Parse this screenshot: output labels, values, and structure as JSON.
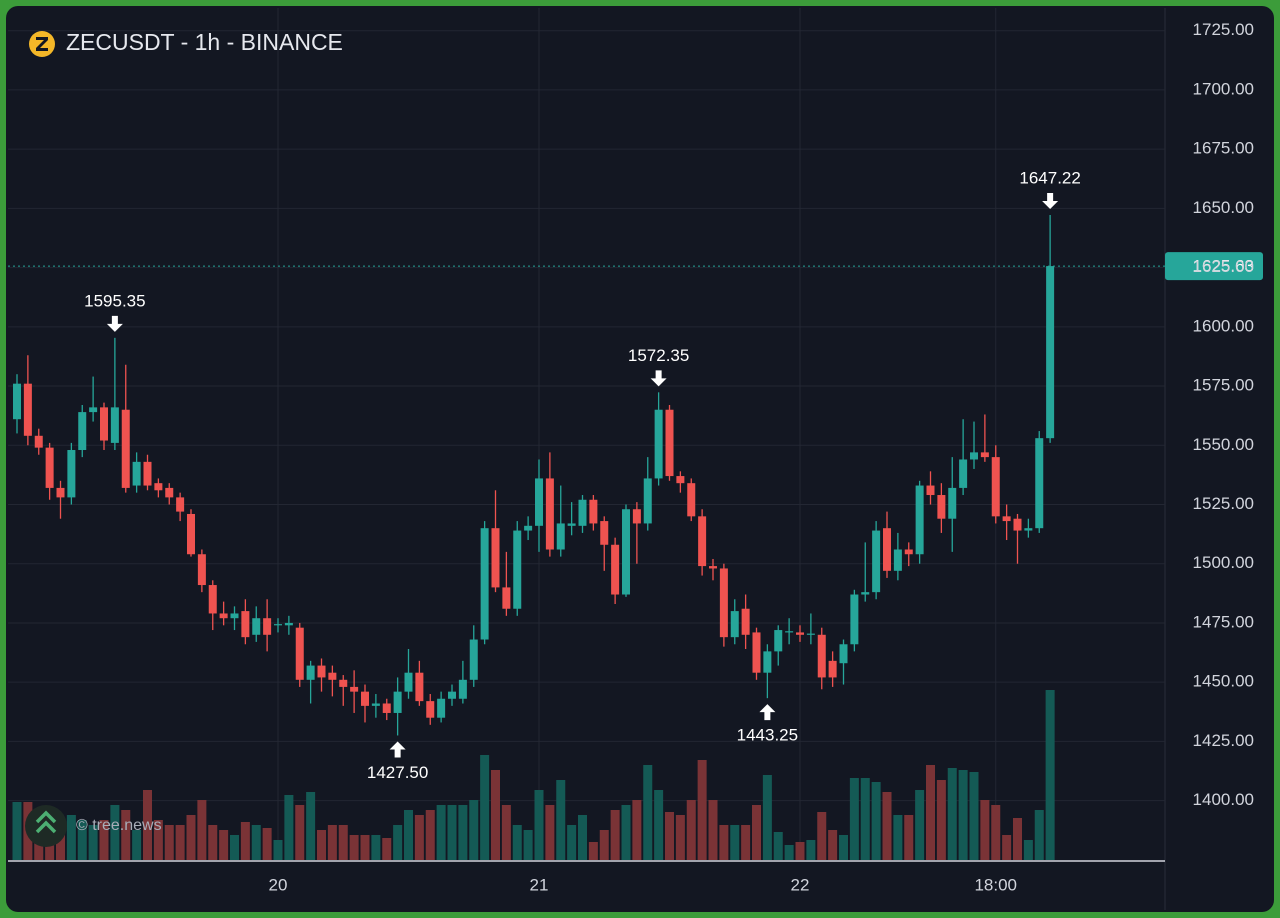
{
  "chart_data": {
    "type": "candlestick",
    "title": "ZECUSDT - 1h - BINANCE",
    "watermark": "© tree.news",
    "categories": [
      null,
      null,
      null,
      null,
      null,
      null,
      null,
      null,
      null,
      null,
      null,
      null,
      null,
      null,
      null,
      null,
      null,
      null,
      null,
      null,
      null,
      null,
      null,
      null,
      "20",
      null,
      null,
      null,
      null,
      null,
      null,
      null,
      null,
      null,
      null,
      null,
      null,
      null,
      null,
      null,
      null,
      null,
      null,
      null,
      null,
      null,
      null,
      null,
      "21",
      null,
      null,
      null,
      null,
      null,
      null,
      null,
      null,
      null,
      null,
      null,
      null,
      null,
      null,
      null,
      null,
      null,
      null,
      null,
      null,
      null,
      null,
      null,
      "22",
      null,
      null,
      null,
      null,
      null,
      null,
      null,
      null,
      null,
      null,
      null,
      null,
      null,
      null,
      null,
      null,
      null,
      "18:00",
      null,
      null,
      null,
      null,
      null
    ],
    "open": [
      1561,
      1576,
      1554,
      1549,
      1532,
      1528,
      1548,
      1564,
      1566,
      1551,
      1565,
      1533,
      1543,
      1534,
      1532,
      1528,
      1521,
      1504,
      1491,
      1479,
      1477,
      1480,
      1470,
      1477,
      1474,
      1474,
      1473,
      1451,
      1457,
      1454,
      1451,
      1448,
      1446,
      1440,
      1441,
      1437,
      1446,
      1454,
      1442,
      1435,
      1443,
      1443,
      1451,
      1468,
      1515,
      1490,
      1481,
      1514,
      1516,
      1536,
      1506,
      1516,
      1516,
      1527,
      1518,
      1508,
      1487,
      1523,
      1517,
      1536,
      1565,
      1537,
      1534,
      1520,
      1499,
      1498,
      1469,
      1481,
      1471,
      1454,
      1463,
      1471,
      1471,
      1470,
      1470,
      1459,
      1458,
      1466,
      1487,
      1488,
      1515,
      1497,
      1506,
      1504,
      1533,
      1529,
      1519,
      1532,
      1544,
      1547,
      1545,
      1520,
      1519,
      1514,
      1515,
      1553
    ],
    "high": [
      1580,
      1588,
      1557,
      1551,
      1535,
      1551,
      1567,
      1579,
      1568,
      1595.35,
      1584,
      1547,
      1546,
      1536,
      1534,
      1530,
      1523,
      1506,
      1493,
      1484,
      1482,
      1485,
      1482,
      1485,
      1477,
      1478,
      1475,
      1459,
      1460,
      1457,
      1453,
      1455,
      1449,
      1445,
      1443,
      1452,
      1464,
      1459,
      1445,
      1446,
      1449,
      1459,
      1474,
      1518,
      1531,
      1505,
      1518,
      1520,
      1544,
      1547,
      1533,
      1526,
      1529,
      1529,
      1520,
      1511,
      1525,
      1526,
      1545,
      1572.35,
      1567,
      1539,
      1536,
      1523,
      1502,
      1500,
      1485,
      1487,
      1473,
      1466,
      1474,
      1477,
      1474,
      1479,
      1473,
      1463,
      1468,
      1489,
      1509,
      1518,
      1522,
      1513,
      1509,
      1535,
      1539,
      1534,
      1545,
      1561,
      1560,
      1563,
      1550,
      1525,
      1521,
      1519,
      1556,
      1647.22
    ],
    "low": [
      1555,
      1550,
      1546,
      1527,
      1519,
      1525,
      1545,
      1560,
      1548,
      1548,
      1530,
      1530,
      1531,
      1528,
      1525,
      1518,
      1503,
      1488,
      1472,
      1474,
      1472,
      1466,
      1467,
      1463,
      1471,
      1470,
      1448,
      1441,
      1446,
      1444,
      1440,
      1437,
      1433,
      1435,
      1434,
      1427.5,
      1443,
      1440,
      1432,
      1433,
      1440,
      1441,
      1448,
      1466,
      1488,
      1478,
      1478,
      1510,
      1505,
      1503,
      1503,
      1512,
      1513,
      1514,
      1497,
      1483,
      1486,
      1500,
      1514,
      1533,
      1535,
      1530,
      1518,
      1495,
      1493,
      1465,
      1466,
      1464,
      1451,
      1443.25,
      1457,
      1466,
      1467,
      1466,
      1447,
      1448,
      1449,
      1463,
      1484,
      1485,
      1494,
      1493,
      1499,
      1500,
      1525,
      1513,
      1505,
      1529,
      1540,
      1543,
      1517,
      1510,
      1500,
      1511,
      1513,
      1551
    ],
    "close": [
      1576,
      1554,
      1549,
      1532,
      1528,
      1548,
      1564,
      1566,
      1552,
      1566,
      1532,
      1543,
      1533,
      1531,
      1528,
      1522,
      1504,
      1491,
      1479,
      1477,
      1479,
      1469,
      1477,
      1470,
      1474.5,
      1475,
      1451,
      1457,
      1452,
      1451,
      1448,
      1446,
      1440,
      1441,
      1437,
      1446,
      1454,
      1442,
      1435,
      1443,
      1446,
      1451,
      1468,
      1515,
      1490,
      1481,
      1514,
      1516,
      1536,
      1506,
      1517,
      1517,
      1527,
      1517,
      1508,
      1487,
      1523,
      1517,
      1536,
      1565,
      1537,
      1534,
      1520,
      1499,
      1498,
      1469,
      1480,
      1470,
      1454,
      1463,
      1472,
      1471.5,
      1470,
      1470.5,
      1452,
      1452,
      1466,
      1487,
      1488,
      1514,
      1497,
      1506,
      1504,
      1533,
      1529,
      1519,
      1532,
      1544,
      1547,
      1545,
      1520,
      1518,
      1514,
      1515,
      1553,
      1625.63
    ],
    "volume": [
      58,
      58,
      45,
      45,
      40,
      45,
      40,
      35,
      40,
      55,
      50,
      30,
      70,
      40,
      35,
      35,
      45,
      60,
      35,
      30,
      25,
      38,
      35,
      32,
      20,
      65,
      55,
      68,
      30,
      35,
      35,
      25,
      25,
      25,
      22,
      35,
      50,
      45,
      50,
      55,
      55,
      55,
      60,
      105,
      90,
      55,
      35,
      30,
      70,
      55,
      80,
      35,
      45,
      18,
      30,
      50,
      55,
      60,
      95,
      70,
      48,
      45,
      60,
      100,
      60,
      35,
      35,
      35,
      55,
      85,
      28,
      15,
      18,
      20,
      48,
      30,
      25,
      82,
      82,
      78,
      68,
      45,
      45,
      70,
      95,
      80,
      92,
      90,
      88,
      60,
      55,
      25,
      42,
      20,
      50,
      170
    ],
    "volume_lim": [
      0,
      170
    ],
    "up_color": "#26a69a",
    "down_color": "#ef5350",
    "volume_up_color": "#145a55",
    "volume_down_color": "#7a3336",
    "ylim": [
      1380,
      1735
    ],
    "yticks": [
      {
        "value": 1400,
        "label": "1400.00"
      },
      {
        "value": 1425,
        "label": "1425.00"
      },
      {
        "value": 1450,
        "label": "1450.00"
      },
      {
        "value": 1475,
        "label": "1475.00"
      },
      {
        "value": 1500,
        "label": "1500.00"
      },
      {
        "value": 1525,
        "label": "1525.00"
      },
      {
        "value": 1550,
        "label": "1550.00"
      },
      {
        "value": 1575,
        "label": "1575.00"
      },
      {
        "value": 1600,
        "label": "1600.00"
      },
      {
        "value": 1625,
        "label": "1625.00"
      },
      {
        "value": 1650,
        "label": "1650.00"
      },
      {
        "value": 1675,
        "label": "1675.00"
      },
      {
        "value": 1700,
        "label": "1700.00"
      },
      {
        "value": 1725,
        "label": "1725.00"
      }
    ],
    "grid": true,
    "last_price": 1625.63,
    "annotations": [
      {
        "x": 9,
        "value": 1595.35
      },
      {
        "x": 35,
        "value": {
          "value": 1427.5,
          "label": "1427.50"
        }
      },
      {
        "x": 59,
        "value": 1572.35
      },
      {
        "x": 69,
        "value": 1443.25
      },
      {
        "x": 95,
        "value": 1647.22
      }
    ]
  }
}
